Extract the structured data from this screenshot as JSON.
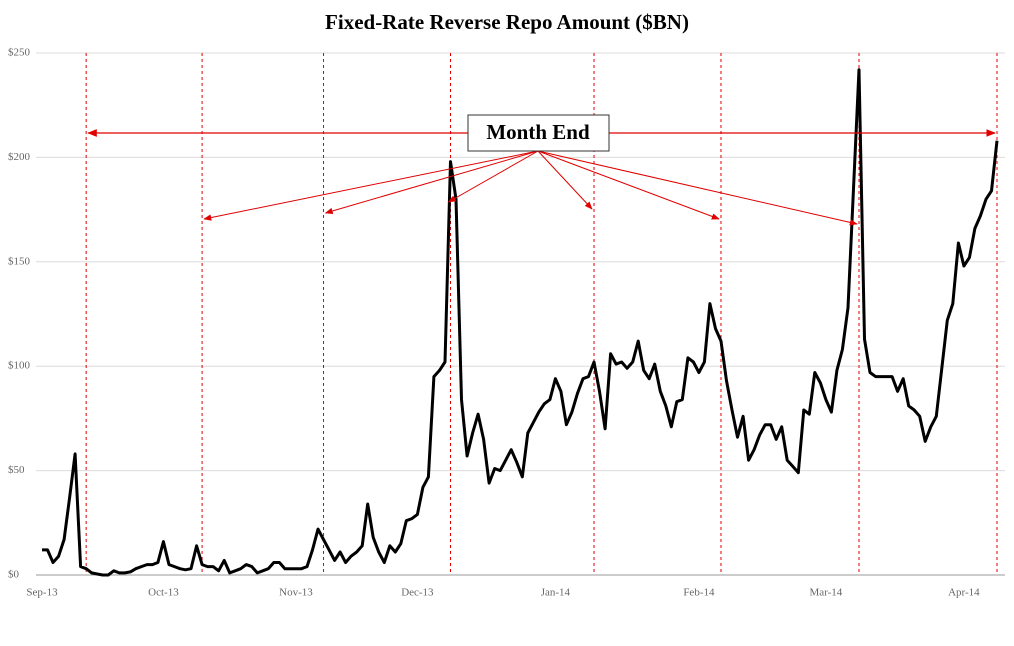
{
  "chart_data": {
    "type": "line",
    "title": "Fixed-Rate Reverse Repo Amount ($BN)",
    "annotation": "Month End",
    "categories": [
      "Sep-13",
      null,
      null,
      null,
      null,
      null,
      null,
      null,
      null,
      null,
      null,
      null,
      null,
      null,
      null,
      null,
      null,
      null,
      null,
      null,
      null,
      null,
      "Oct-13",
      null,
      null,
      null,
      null,
      null,
      null,
      null,
      null,
      null,
      null,
      null,
      null,
      null,
      null,
      null,
      null,
      null,
      null,
      null,
      null,
      null,
      null,
      null,
      "Nov-13",
      null,
      null,
      null,
      null,
      null,
      null,
      null,
      null,
      null,
      null,
      null,
      null,
      null,
      null,
      null,
      null,
      null,
      null,
      null,
      null,
      null,
      "Dec-13",
      null,
      null,
      null,
      null,
      null,
      null,
      null,
      null,
      null,
      null,
      null,
      null,
      null,
      null,
      null,
      null,
      null,
      null,
      null,
      null,
      null,
      null,
      null,
      null,
      "Jan-14",
      null,
      null,
      null,
      null,
      null,
      null,
      null,
      null,
      null,
      null,
      null,
      null,
      null,
      null,
      null,
      null,
      null,
      null,
      null,
      null,
      null,
      null,
      null,
      null,
      null,
      "Feb-14",
      null,
      null,
      null,
      null,
      null,
      null,
      null,
      null,
      null,
      null,
      null,
      null,
      null,
      null,
      null,
      null,
      null,
      null,
      null,
      null,
      null,
      null,
      "Mar-14",
      null,
      null,
      null,
      null,
      null,
      null,
      null,
      null,
      null,
      null,
      null,
      null,
      null,
      null,
      null,
      null,
      null,
      null,
      null,
      null,
      null,
      null,
      null,
      null,
      "Apr-14",
      null,
      null,
      null,
      null,
      null,
      null
    ],
    "series": [
      {
        "name": "Fixed-Rate Reverse Repo",
        "color": "#000000",
        "values": [
          12,
          12,
          6,
          9,
          17,
          37,
          58,
          4,
          3,
          1,
          0.5,
          0,
          0,
          2,
          1,
          1,
          1.5,
          3,
          4,
          5,
          5,
          6,
          16,
          5,
          4,
          3,
          2.5,
          3,
          14,
          5,
          4,
          4,
          2,
          7,
          1,
          2,
          3,
          5,
          4,
          1,
          2,
          3,
          6,
          6,
          3,
          3,
          3,
          3,
          4,
          12,
          22,
          17,
          12,
          7,
          11,
          6,
          9,
          11,
          14,
          34,
          18,
          11,
          6,
          14,
          11,
          15,
          26,
          27,
          29,
          42,
          47,
          95,
          98,
          102,
          198,
          180,
          84,
          57,
          68,
          77,
          65,
          44,
          51,
          50,
          55,
          60,
          54,
          47,
          68,
          73,
          78,
          82,
          84,
          94,
          88,
          72,
          78,
          87,
          94,
          95,
          102,
          88,
          70,
          106,
          101,
          102,
          99,
          102,
          112,
          98,
          94,
          101,
          88,
          81,
          71,
          83,
          84,
          104,
          102,
          97,
          102,
          130,
          118,
          112,
          93,
          79,
          66,
          76,
          55,
          60,
          67,
          72,
          72,
          65,
          71,
          55,
          52,
          49,
          79,
          77,
          97,
          92,
          84,
          78,
          98,
          108,
          128,
          185,
          242,
          113,
          97,
          95,
          95,
          95,
          95,
          88,
          94,
          81,
          79,
          76,
          64,
          71,
          76,
          99,
          122,
          130,
          159,
          148,
          152,
          166,
          172,
          180,
          184,
          208
        ]
      }
    ],
    "ylim": [
      0,
      250
    ],
    "yticks": [
      {
        "value": 0,
        "label": "$0"
      },
      {
        "value": 50,
        "label": "$50"
      },
      {
        "value": 100,
        "label": "$100"
      },
      {
        "value": 150,
        "label": "$150"
      },
      {
        "value": 200,
        "label": "$200"
      },
      {
        "value": 250,
        "label": "$250"
      }
    ],
    "grid": true
  }
}
